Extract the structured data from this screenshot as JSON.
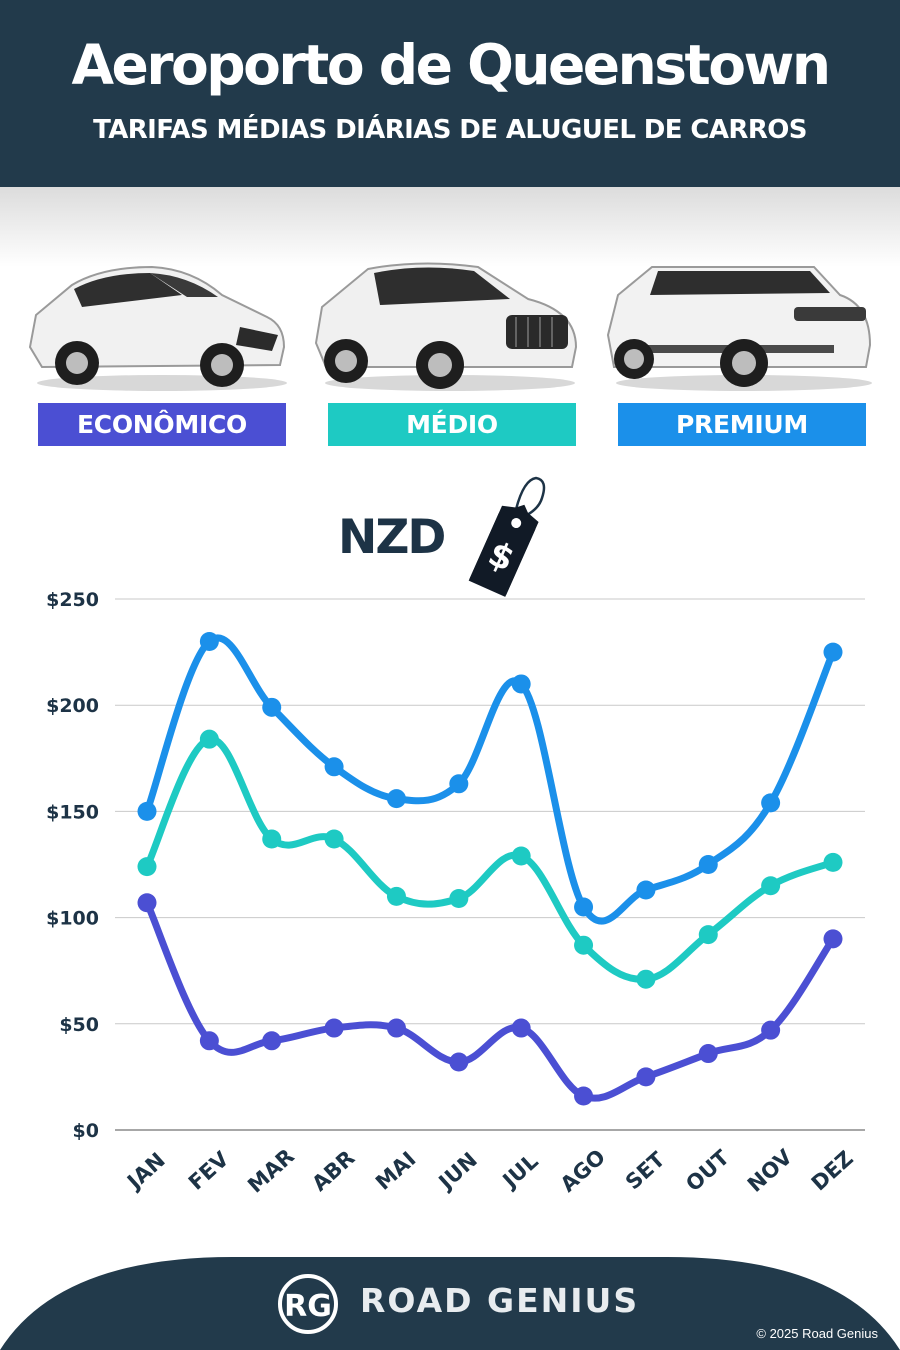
{
  "header": {
    "title": "Aeroporto de Queenstown",
    "subtitle": "TARIFAS MÉDIAS DIÁRIAS DE ALUGUEL DE CARROS"
  },
  "categories": [
    {
      "label": "ECONÔMICO",
      "color": "#4b4fd3"
    },
    {
      "label": "MÉDIO",
      "color": "#1ecac3"
    },
    {
      "label": "PREMIUM",
      "color": "#1b90ea"
    }
  ],
  "currency": {
    "label": "NZD",
    "tag_symbol": "$"
  },
  "chart_data": {
    "type": "line",
    "categories": [
      "JAN",
      "FEV",
      "MAR",
      "ABR",
      "MAI",
      "JUN",
      "JUL",
      "AGO",
      "SET",
      "OUT",
      "NOV",
      "DEZ"
    ],
    "series": [
      {
        "name": "PREMIUM",
        "color": "#1b90ea",
        "values": [
          150,
          230,
          199,
          171,
          156,
          163,
          210,
          105,
          113,
          125,
          154,
          225
        ]
      },
      {
        "name": "MÉDIO",
        "color": "#1ecac3",
        "values": [
          124,
          184,
          137,
          137,
          110,
          109,
          129,
          87,
          71,
          92,
          115,
          126
        ]
      },
      {
        "name": "ECONÔMICO",
        "color": "#4b4fd3",
        "values": [
          107,
          42,
          42,
          48,
          48,
          32,
          48,
          16,
          25,
          36,
          47,
          90
        ]
      }
    ],
    "yticks": [
      "$0",
      "$50",
      "$100",
      "$150",
      "$200",
      "$250"
    ],
    "ylim": [
      0,
      250
    ],
    "grid": true
  },
  "footer": {
    "logo": "RG",
    "brand": "ROAD GENIUS",
    "copyright": "© 2025 Road Genius"
  }
}
